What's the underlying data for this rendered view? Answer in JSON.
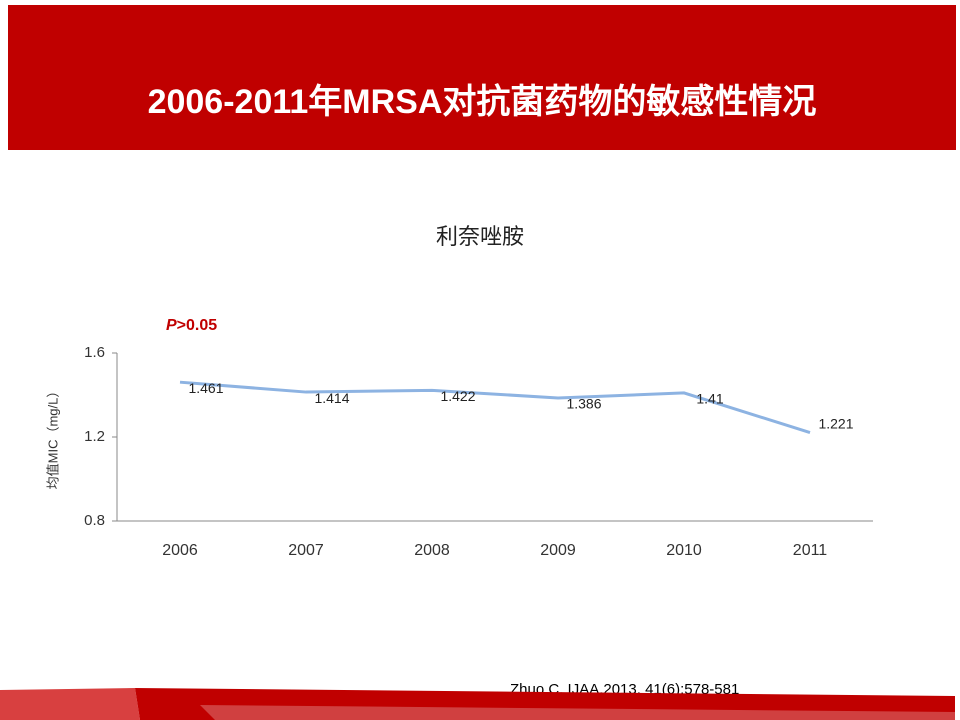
{
  "slide": {
    "title": "2006-2011年MRSA对抗菌药物的敏感性情况",
    "citation": "Zhuo C, IJAA,2013, 41(6):578-581"
  },
  "chart_data": {
    "type": "line",
    "title": "利奈唑胺",
    "annotation_italic": "P",
    "annotation": ">0.05",
    "y_label": "均值MIC（mg/L）",
    "categories": [
      "2006",
      "2007",
      "2008",
      "2009",
      "2010",
      "2011"
    ],
    "values": [
      1.461,
      1.414,
      1.422,
      1.386,
      1.41,
      1.221
    ],
    "color": "#8db3e2",
    "ylim": [
      0.8,
      1.6
    ],
    "yticks": [
      0.8,
      1.2,
      1.6
    ],
    "grid": false
  }
}
